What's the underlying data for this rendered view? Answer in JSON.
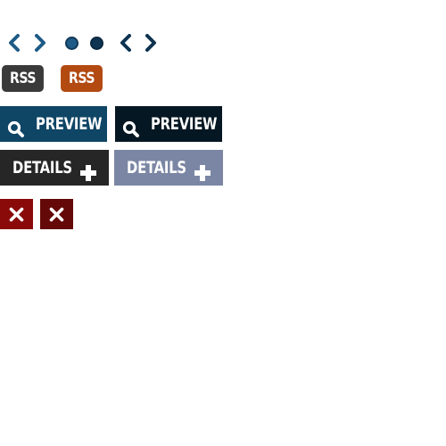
{
  "colors": {
    "chevron": "#1e5b86",
    "chevron_dark": "#0d3350",
    "dot_active": "#1e5b86",
    "dot_inactive": "#0f3553",
    "rss_dark": "#3a3a3a",
    "rss_orange": "#b24a12",
    "preview_blue": "#0f4565",
    "preview_dark": "#051722",
    "details_dark": "#262626",
    "details_gray": "#7b86a4",
    "close_red": "#8a0a0a",
    "close_darkred": "#640808"
  },
  "nav": {
    "prev_icon": "chevron-left-icon",
    "next_icon": "chevron-right-icon"
  },
  "pager": {
    "dots": [
      "active",
      "inactive"
    ]
  },
  "rss": {
    "dark_label": "RSS",
    "orange_label": "RSS"
  },
  "preview": {
    "blue_label": "PREVIEW",
    "dark_label": "PREVIEW",
    "icon": "search-icon"
  },
  "details": {
    "dark_label": "DETAILS",
    "gray_label": "DETAILS",
    "icon": "plus-icon"
  },
  "close": {
    "icon": "close-icon"
  }
}
